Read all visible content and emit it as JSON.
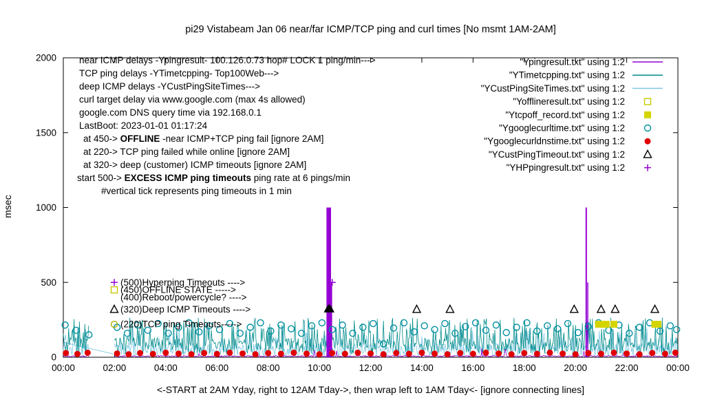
{
  "chart_data": {
    "type": "line",
    "title": "pi29 Vistabeam Jan 06  near/far ICMP/TCP ping and curl times [No msmt 1AM-2AM]",
    "ylabel": "msec",
    "xlabel": "<-START at 2AM Yday, right to 12AM Tday->, then wrap left to 1AM Tday<- [ignore connecting lines]",
    "ylim": [
      0,
      2000
    ],
    "xlim_hours": [
      0,
      24
    ],
    "yticks": [
      {
        "v": 0,
        "label": "0"
      },
      {
        "v": 500,
        "label": "500"
      },
      {
        "v": 1000,
        "label": "1000"
      },
      {
        "v": 1500,
        "label": "1500"
      },
      {
        "v": 2000,
        "label": "2000"
      }
    ],
    "xticks": [
      {
        "h": 0,
        "label": "00:00"
      },
      {
        "h": 2,
        "label": "02:00"
      },
      {
        "h": 4,
        "label": "04:00"
      },
      {
        "h": 6,
        "label": "06:00"
      },
      {
        "h": 8,
        "label": "08:00"
      },
      {
        "h": 10,
        "label": "10:00"
      },
      {
        "h": 12,
        "label": "12:00"
      },
      {
        "h": 14,
        "label": "14:00"
      },
      {
        "h": 16,
        "label": "16:00"
      },
      {
        "h": 18,
        "label": "18:00"
      },
      {
        "h": 20,
        "label": "20:00"
      },
      {
        "h": 22,
        "label": "22:00"
      },
      {
        "h": 24,
        "label": "00:00"
      }
    ],
    "msmt_gap_hours": [
      1,
      2
    ],
    "noise_series": [
      {
        "name": "YCustPingSiteTimes",
        "color": "#7ec8e3",
        "seed": 13,
        "min": 4,
        "base": 8,
        "range": 85,
        "spike_prob": 0.12,
        "spike_min": 120,
        "spike_max": 205,
        "width": 0.8
      },
      {
        "name": "YTimetcpping",
        "color": "#008b8b",
        "seed": 7,
        "min": 12,
        "base": 22,
        "range": 110,
        "spike_prob": 0.22,
        "spike_min": 150,
        "spike_max": 265,
        "width": 0.8
      },
      {
        "name": "Ypingresult",
        "color": "#9400d3",
        "seed": 21,
        "min": 1,
        "base": 2,
        "range": 10,
        "spike_prob": 0.02,
        "spike_min": 20,
        "spike_max": 60,
        "width": 0.8
      }
    ],
    "artifact_segment": {
      "x1": 0,
      "y1": 100,
      "x2": 1.95,
      "y2": 22,
      "color": "#7ec8e3"
    },
    "purple_spikes": [
      [
        10.33,
        1000,
        4
      ],
      [
        10.4,
        1000,
        4
      ],
      [
        10.47,
        500,
        2
      ],
      [
        20.42,
        1000,
        2
      ],
      [
        20.48,
        500,
        1.5
      ]
    ],
    "spike_color": "#9400d3",
    "points": {
      "googlecurltime": {
        "marker": "open-circle",
        "color": "#0090a0",
        "data": [
          [
            0.07,
            215
          ],
          [
            0.5,
            180
          ],
          [
            1.0,
            150
          ],
          [
            2.1,
            200
          ],
          [
            2.5,
            160
          ],
          [
            2.9,
            215
          ],
          [
            3.3,
            180
          ],
          [
            3.7,
            225
          ],
          [
            4.1,
            160
          ],
          [
            4.5,
            200
          ],
          [
            4.9,
            230
          ],
          [
            5.3,
            170
          ],
          [
            5.7,
            210
          ],
          [
            6.1,
            185
          ],
          [
            6.5,
            225
          ],
          [
            6.9,
            160
          ],
          [
            7.3,
            200
          ],
          [
            7.7,
            230
          ],
          [
            8.1,
            175
          ],
          [
            8.5,
            215
          ],
          [
            8.9,
            190
          ],
          [
            9.3,
            160
          ],
          [
            9.7,
            210
          ],
          [
            10.1,
            230
          ],
          [
            10.5,
            185
          ],
          [
            10.9,
            215
          ],
          [
            11.3,
            160
          ],
          [
            11.7,
            200
          ],
          [
            12.1,
            225
          ],
          [
            12.5,
            90
          ],
          [
            12.9,
            195
          ],
          [
            13.3,
            230
          ],
          [
            13.7,
            170
          ],
          [
            14.1,
            210
          ],
          [
            14.5,
            185
          ],
          [
            14.9,
            225
          ],
          [
            15.3,
            160
          ],
          [
            15.7,
            205
          ],
          [
            16.1,
            230
          ],
          [
            16.5,
            180
          ],
          [
            16.9,
            215
          ],
          [
            17.3,
            165
          ],
          [
            17.7,
            200
          ],
          [
            18.1,
            230
          ],
          [
            18.5,
            175
          ],
          [
            18.9,
            210
          ],
          [
            19.3,
            190
          ],
          [
            19.7,
            225
          ],
          [
            20.1,
            165
          ],
          [
            20.5,
            205
          ],
          [
            20.9,
            230
          ],
          [
            21.3,
            180
          ],
          [
            21.7,
            215
          ],
          [
            22.1,
            160
          ],
          [
            22.5,
            200
          ],
          [
            22.9,
            230
          ],
          [
            23.3,
            175
          ],
          [
            23.7,
            210
          ],
          [
            23.95,
            185
          ]
        ]
      },
      "googlecurldnstime": {
        "marker": "filled-circle",
        "color": "#e00000",
        "data": [
          [
            0.1,
            28
          ],
          [
            0.55,
            22
          ],
          [
            0.95,
            30
          ],
          [
            2.1,
            25
          ],
          [
            2.55,
            20
          ],
          [
            3.0,
            28
          ],
          [
            3.5,
            22
          ],
          [
            4.0,
            30
          ],
          [
            4.5,
            24
          ],
          [
            5.0,
            20
          ],
          [
            5.5,
            28
          ],
          [
            6.0,
            22
          ],
          [
            6.5,
            30
          ],
          [
            7.0,
            25
          ],
          [
            7.5,
            20
          ],
          [
            8.0,
            28
          ],
          [
            8.5,
            23
          ],
          [
            9.0,
            30
          ],
          [
            9.5,
            24
          ],
          [
            10.0,
            20
          ],
          [
            10.5,
            28
          ],
          [
            11.0,
            23
          ],
          [
            11.5,
            30
          ],
          [
            12.0,
            25
          ],
          [
            12.5,
            20
          ],
          [
            13.0,
            28
          ],
          [
            13.5,
            23
          ],
          [
            14.0,
            30
          ],
          [
            14.5,
            24
          ],
          [
            15.0,
            20
          ],
          [
            15.5,
            28
          ],
          [
            16.0,
            23
          ],
          [
            16.5,
            30
          ],
          [
            17.0,
            25
          ],
          [
            17.5,
            20
          ],
          [
            18.0,
            28
          ],
          [
            18.5,
            23
          ],
          [
            19.0,
            30
          ],
          [
            19.5,
            24
          ],
          [
            20.0,
            20
          ],
          [
            20.5,
            28
          ],
          [
            21.0,
            23
          ],
          [
            21.5,
            30
          ],
          [
            22.0,
            25
          ],
          [
            22.5,
            20
          ],
          [
            23.0,
            28
          ],
          [
            23.5,
            23
          ],
          [
            23.9,
            30
          ]
        ]
      },
      "custpingtimeout_open": {
        "marker": "open-triangle",
        "color": "#000000",
        "data": [
          [
            13.8,
            320
          ],
          [
            15.1,
            320
          ],
          [
            19.95,
            320
          ],
          [
            21.0,
            320
          ],
          [
            21.55,
            320
          ],
          [
            23.1,
            320
          ]
        ]
      },
      "custpingtimeout_filled": {
        "marker": "filled-triangle",
        "color": "#000000",
        "data": [
          [
            10.32,
            320
          ],
          [
            10.38,
            330
          ],
          [
            10.44,
            320
          ]
        ]
      },
      "tcpoff_record": {
        "marker": "filled-square",
        "color": "#d4d400",
        "data": [
          [
            20.9,
            220
          ],
          [
            21.1,
            220
          ],
          [
            21.2,
            220
          ],
          [
            21.5,
            220
          ],
          [
            23.1,
            220
          ],
          [
            23.22,
            220
          ]
        ]
      },
      "offlineresult": {
        "marker": "open-square",
        "color": "#c8c800",
        "data": []
      },
      "hp_ping": {
        "marker": "plus",
        "color": "#9400d3",
        "data": [
          [
            10.5,
            500
          ]
        ]
      }
    },
    "legend": [
      {
        "label": "\"Ypingresult.txt\" using 1:2",
        "marker": "line",
        "color": "#9400d3"
      },
      {
        "label": "\"YTimetcpping.txt\" using 1:2",
        "marker": "line",
        "color": "#008b8b"
      },
      {
        "label": "\"YCustPingSiteTimes.txt\" using 1:2",
        "marker": "line",
        "color": "#7ec8e3"
      },
      {
        "label": "\"Yofflineresult.txt\" using 1:2",
        "marker": "open-square",
        "color": "#c8c800"
      },
      {
        "label": "\"Ytcpoff_record.txt\" using 1:2",
        "marker": "filled-square",
        "color": "#d4d400"
      },
      {
        "label": "\"Ygooglecurltime.txt\" using 1:2",
        "marker": "open-circle",
        "color": "#0090a0"
      },
      {
        "label": "\"Ygooglecurldnstime.txt\" using 1:2",
        "marker": "filled-circle",
        "color": "#e00000"
      },
      {
        "label": "\"YCustPingTimeout.txt\" using 1:2",
        "marker": "open-triangle",
        "color": "#000000"
      },
      {
        "label": "\"YHPpingresult.txt\" using 1:2",
        "marker": "plus",
        "color": "#9400d3"
      }
    ],
    "annotations_left": [
      {
        "x": 115,
        "segments": [
          {
            "t": "near ICMP delays -Ypingresult- 100.126.0.73 hop# LOCK 1 ping/min--->",
            "b": false
          }
        ]
      },
      {
        "x": 115,
        "segments": [
          {
            "t": "TCP ping delays -YTimetcpping- Top100Web--->",
            "b": false
          }
        ]
      },
      {
        "x": 115,
        "segments": [
          {
            "t": "deep ICMP delays -YCustPingSiteTimes--->",
            "b": false
          }
        ]
      },
      {
        "x": 115,
        "segments": [
          {
            "t": "curl target delay via www.google.com (max 4s allowed)",
            "b": false
          }
        ]
      },
      {
        "x": 115,
        "segments": [
          {
            "t": "google.com DNS query time via 192.168.0.1",
            "b": false
          }
        ]
      },
      {
        "x": 115,
        "segments": [
          {
            "t": "LastBoot: 2023-01-01 01:17:24",
            "b": false
          }
        ]
      },
      {
        "x": 121,
        "segments": [
          {
            "t": "at 450->  ",
            "b": false
          },
          {
            "t": "OFFLINE",
            "b": true
          },
          {
            "t": " -near ICMP+TCP ping fail [ignore 2AM]",
            "b": false
          }
        ]
      },
      {
        "x": 121,
        "segments": [
          {
            "t": "at 220-> TCP ping failed while online [ignore 2AM]",
            "b": false
          }
        ]
      },
      {
        "x": 121,
        "segments": [
          {
            "t": "at 320-> deep (customer) ICMP timeouts [ignore 2AM]",
            "b": false
          }
        ]
      },
      {
        "x": 112,
        "segments": [
          {
            "t": "start 500->  ",
            "b": false
          },
          {
            "t": "EXCESS ICMP ping timeouts",
            "b": true
          },
          {
            "t": " ping rate at 6 pings/min",
            "b": false
          }
        ]
      },
      {
        "x": 147,
        "segments": [
          {
            "t": "#vertical tick represents ping timeouts in 1 min",
            "b": false
          }
        ]
      }
    ],
    "mid_annotations": [
      {
        "y": 500,
        "marker": "plus",
        "color": "#9400d3",
        "text": "(500)Hyperping Timeouts ---->"
      },
      {
        "y": 450,
        "marker": "open-square",
        "color": "#c8c800",
        "text": "(450)OFFLINE STATE ----->"
      },
      {
        "y": 400,
        "marker": "none",
        "color": "#000000",
        "text": "(400)Reboot/powercycle? ---->"
      },
      {
        "y": 320,
        "marker": "open-triangle",
        "color": "#000000",
        "text": "(320)Deep ICMP Timeouts ---->"
      },
      {
        "y": 220,
        "marker": "open-circle",
        "color": "#b0b000",
        "text": "(220)TCP ping Timeouts----->"
      }
    ]
  }
}
